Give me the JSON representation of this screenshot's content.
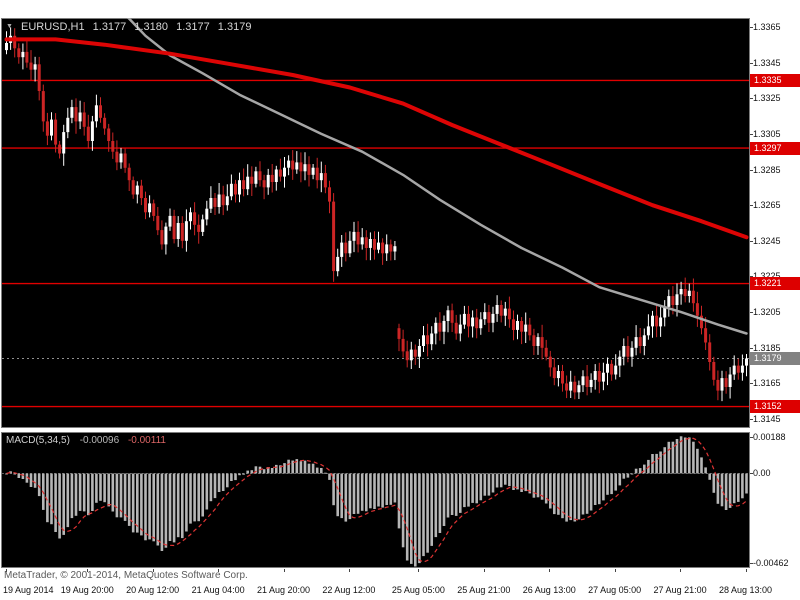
{
  "header": {
    "symbol_period": "EURUSD,H1",
    "open": "1.3177",
    "high": "1.3180",
    "low": "1.3177",
    "close": "1.3179"
  },
  "footer": {
    "watermark": "MetaTrader, © 2001-2014, MetaQuotes Software Corp."
  },
  "colors": {
    "panel_bg": "#000000",
    "panel_border": "#7d7d7d",
    "bull": "#ffffff",
    "bear": "#cc2525",
    "ma_red": "#dd0505",
    "ma_dark": "#a6a6a6",
    "level_line": "#e00000",
    "level_label_bg": "#dd0000",
    "current_line": "#8f8f8f",
    "current_label_bg": "#828282",
    "hist": "#b6b6b6",
    "signal": "#dd3333",
    "zero_line": "#5f5f5f"
  },
  "chart_data": {
    "type": "candlestick",
    "title": "EURUSD H1 with two moving averages, horizontal support/resistance lines and MACD(5,34,5)",
    "main": {
      "symbol": "EURUSD",
      "timeframe": "H1",
      "price_top": 1.337,
      "price_bottom": 1.314,
      "price_axis": [
        1.3365,
        1.3345,
        1.3325,
        1.3305,
        1.3285,
        1.3265,
        1.3245,
        1.3225,
        1.3205,
        1.3185,
        1.3165,
        1.3145
      ],
      "level_lines": [
        1.3335,
        1.3297,
        1.3221,
        1.3152
      ],
      "current_price": 1.3179,
      "open_first": 1.3352,
      "open_overrides": {
        "96": 1.3196
      },
      "low_overrides": {
        "80": 1.3222,
        "98": 1.3174
      },
      "high_overrides": {
        "165": 1.3222,
        "167": 1.3221
      },
      "closes": [
        1.3356,
        1.336,
        1.3353,
        1.3348,
        1.3351,
        1.3345,
        1.3341,
        1.3344,
        1.3329,
        1.3312,
        1.3304,
        1.3313,
        1.3299,
        1.3294,
        1.3306,
        1.3314,
        1.332,
        1.3312,
        1.3317,
        1.3309,
        1.3301,
        1.3312,
        1.3321,
        1.3314,
        1.3308,
        1.3301,
        1.3295,
        1.3289,
        1.3294,
        1.3286,
        1.3279,
        1.3271,
        1.3276,
        1.3269,
        1.3261,
        1.3266,
        1.3259,
        1.3251,
        1.3243,
        1.3253,
        1.3259,
        1.3246,
        1.3255,
        1.3245,
        1.3256,
        1.3261,
        1.3254,
        1.325,
        1.3257,
        1.3263,
        1.3269,
        1.3264,
        1.3271,
        1.3265,
        1.327,
        1.3277,
        1.3271,
        1.3279,
        1.3274,
        1.3281,
        1.3277,
        1.3284,
        1.3279,
        1.3275,
        1.3282,
        1.3278,
        1.3285,
        1.3281,
        1.3286,
        1.329,
        1.3285,
        1.3289,
        1.3284,
        1.3288,
        1.3282,
        1.3286,
        1.3279,
        1.3283,
        1.3275,
        1.3267,
        1.3228,
        1.3236,
        1.3244,
        1.3238,
        1.3245,
        1.325,
        1.3243,
        1.3247,
        1.3241,
        1.3246,
        1.324,
        1.3244,
        1.3238,
        1.3243,
        1.3239,
        1.3242,
        1.319,
        1.3183,
        1.3178,
        1.3184,
        1.318,
        1.3186,
        1.3192,
        1.3187,
        1.3193,
        1.3199,
        1.3194,
        1.32,
        1.3206,
        1.3199,
        1.3193,
        1.3198,
        1.3204,
        1.3197,
        1.3202,
        1.3196,
        1.3201,
        1.3205,
        1.3199,
        1.3204,
        1.3209,
        1.3203,
        1.3207,
        1.3201,
        1.3195,
        1.32,
        1.3194,
        1.3198,
        1.3192,
        1.3186,
        1.3191,
        1.3185,
        1.318,
        1.3174,
        1.3168,
        1.3172,
        1.3165,
        1.3161,
        1.3166,
        1.316,
        1.3164,
        1.3169,
        1.3163,
        1.3167,
        1.3172,
        1.3166,
        1.3171,
        1.3176,
        1.317,
        1.3175,
        1.318,
        1.3186,
        1.318,
        1.3185,
        1.3191,
        1.3186,
        1.3192,
        1.3197,
        1.3203,
        1.3197,
        1.3202,
        1.3208,
        1.3214,
        1.3209,
        1.3215,
        1.3218,
        1.3214,
        1.3217,
        1.321,
        1.3203,
        1.3196,
        1.3188,
        1.3177,
        1.3167,
        1.3161,
        1.3168,
        1.3163,
        1.317,
        1.3175,
        1.3171,
        1.3175,
        1.3179
      ],
      "ma_red_anchors": [
        [
          0,
          1.3358
        ],
        [
          12,
          1.3358
        ],
        [
          24,
          1.3355
        ],
        [
          40,
          1.335
        ],
        [
          55,
          1.3344
        ],
        [
          70,
          1.3338
        ],
        [
          84,
          1.3331
        ],
        [
          97,
          1.3322
        ],
        [
          109,
          1.331
        ],
        [
          121,
          1.3299
        ],
        [
          133,
          1.3288
        ],
        [
          146,
          1.3276
        ],
        [
          158,
          1.3265
        ],
        [
          170,
          1.3256
        ],
        [
          181,
          1.3247
        ]
      ],
      "ma_dark_anchors": [
        [
          29,
          1.3372
        ],
        [
          34,
          1.336
        ],
        [
          40,
          1.3349
        ],
        [
          48,
          1.3339
        ],
        [
          57,
          1.3327
        ],
        [
          67,
          1.3316
        ],
        [
          77,
          1.3305
        ],
        [
          87,
          1.3295
        ],
        [
          97,
          1.3282
        ],
        [
          106,
          1.3268
        ],
        [
          116,
          1.3254
        ],
        [
          126,
          1.3241
        ],
        [
          136,
          1.323
        ],
        [
          145,
          1.3219
        ],
        [
          155,
          1.3212
        ],
        [
          165,
          1.3205
        ],
        [
          174,
          1.3198
        ],
        [
          181,
          1.3193
        ]
      ]
    },
    "macd": {
      "label": "MACD(5,34,5)",
      "macd_value": "-0.00096",
      "signal_value": "-0.00111",
      "fast_ema": 5,
      "slow_ema": 34,
      "signal_period": 5,
      "scale_top": 0.00214,
      "scale_bottom": -0.00488,
      "axis_labels": [
        "0.00188",
        "0.00",
        "-0.00462"
      ],
      "axis_values": [
        0.00188,
        0,
        -0.00462
      ]
    },
    "time_axis": [
      {
        "t": "19 Aug 2014",
        "i": 0
      },
      {
        "t": "19 Aug 20:00",
        "i": 20
      },
      {
        "t": "20 Aug 12:00",
        "i": 36
      },
      {
        "t": "21 Aug 04:00",
        "i": 52
      },
      {
        "t": "21 Aug 20:00",
        "i": 68
      },
      {
        "t": "22 Aug 12:00",
        "i": 84
      },
      {
        "t": "25 Aug 05:00",
        "i": 101
      },
      {
        "t": "25 Aug 21:00",
        "i": 117
      },
      {
        "t": "26 Aug 13:00",
        "i": 133
      },
      {
        "t": "27 Aug 05:00",
        "i": 149
      },
      {
        "t": "27 Aug 21:00",
        "i": 165
      },
      {
        "t": "28 Aug 13:00",
        "i": 181
      }
    ]
  }
}
